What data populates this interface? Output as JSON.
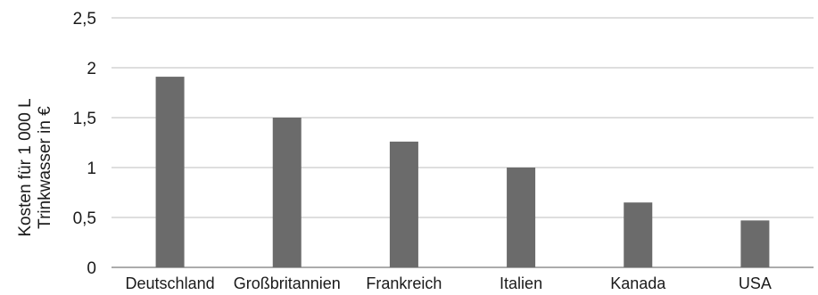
{
  "chart_data": {
    "type": "bar",
    "categories": [
      "Deutschland",
      "Großbritannien",
      "Frankreich",
      "Italien",
      "Kanada",
      "USA"
    ],
    "values": [
      1.91,
      1.5,
      1.26,
      1.0,
      0.65,
      0.47
    ],
    "ylabel": [
      "Kosten für 1 000 L",
      "Trinkwasser in €"
    ],
    "xlabel": "",
    "ylim": [
      0,
      2.5
    ],
    "yticks": [
      "0",
      "0,5",
      "1",
      "1,5",
      "2",
      "2,5"
    ],
    "grid": true,
    "bar_color": "#6b6b6b"
  }
}
